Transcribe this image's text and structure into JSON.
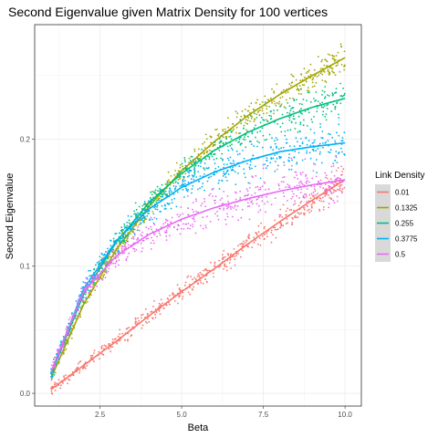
{
  "chart_data": {
    "type": "scatter",
    "title": "Second Eigenvalue given Matrix Density for 100 vertices",
    "xlabel": "Beta",
    "ylabel": "Second Eigenvalue",
    "xlim": [
      0.5,
      10.5
    ],
    "ylim": [
      -0.01,
      0.29
    ],
    "x_ticks": [
      {
        "value": 2.5,
        "label": "2.5"
      },
      {
        "value": 5.0,
        "label": "5.0"
      },
      {
        "value": 7.5,
        "label": "7.5"
      },
      {
        "value": 10.0,
        "label": "10.0"
      }
    ],
    "y_ticks": [
      {
        "value": 0.0,
        "label": "0.0"
      },
      {
        "value": 0.1,
        "label": "0.1"
      },
      {
        "value": 0.2,
        "label": "0.2"
      }
    ],
    "grid": true,
    "legend_title": "Link Density",
    "legend_position": "right",
    "series": [
      {
        "name": "0.01",
        "color": "#F8766D",
        "x": [
          1.0,
          2.0,
          3.0,
          4.0,
          5.0,
          6.0,
          7.0,
          8.0,
          9.0,
          10.0
        ],
        "y": [
          0.003,
          0.022,
          0.041,
          0.061,
          0.08,
          0.098,
          0.117,
          0.135,
          0.152,
          0.168
        ]
      },
      {
        "name": "0.1325",
        "color": "#A3A500",
        "x": [
          1.0,
          2.0,
          3.0,
          4.0,
          5.0,
          6.0,
          7.0,
          8.0,
          9.0,
          10.0
        ],
        "y": [
          0.012,
          0.07,
          0.113,
          0.147,
          0.175,
          0.198,
          0.218,
          0.235,
          0.25,
          0.264
        ]
      },
      {
        "name": "0.255",
        "color": "#00BF7D",
        "x": [
          1.0,
          2.0,
          3.0,
          4.0,
          5.0,
          6.0,
          7.0,
          8.0,
          9.0,
          10.0
        ],
        "y": [
          0.015,
          0.078,
          0.119,
          0.15,
          0.173,
          0.191,
          0.205,
          0.216,
          0.225,
          0.232
        ]
      },
      {
        "name": "0.3775",
        "color": "#00B0F6",
        "x": [
          1.0,
          2.0,
          3.0,
          4.0,
          5.0,
          6.0,
          7.0,
          8.0,
          9.0,
          10.0
        ],
        "y": [
          0.016,
          0.082,
          0.12,
          0.145,
          0.162,
          0.174,
          0.183,
          0.19,
          0.194,
          0.197
        ]
      },
      {
        "name": "0.5",
        "color": "#E76BF3",
        "x": [
          1.0,
          2.0,
          3.0,
          4.0,
          5.0,
          6.0,
          7.0,
          8.0,
          9.0,
          10.0
        ],
        "y": [
          0.017,
          0.08,
          0.108,
          0.125,
          0.137,
          0.146,
          0.153,
          0.159,
          0.164,
          0.168
        ]
      }
    ]
  }
}
